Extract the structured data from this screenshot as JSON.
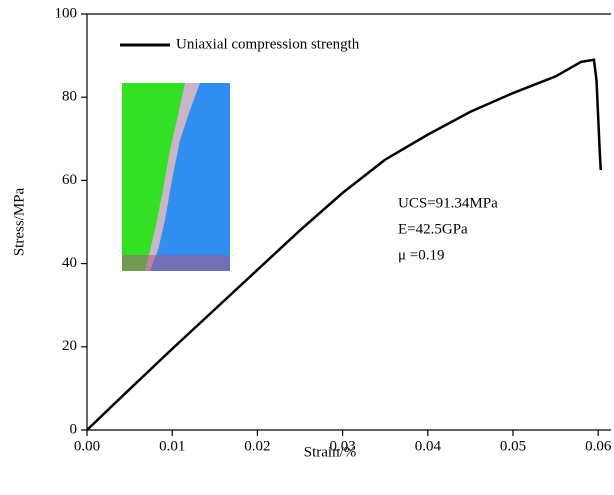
{
  "chart_data": {
    "type": "line",
    "xlabel": "Strain/%",
    "ylabel": "Stress/MPa",
    "x": [
      0,
      0.005,
      0.01,
      0.015,
      0.02,
      0.025,
      0.03,
      0.035,
      0.04,
      0.045,
      0.05,
      0.055,
      0.058,
      0.0595,
      0.0598,
      0.06,
      0.0602,
      0.0603
    ],
    "series": [
      {
        "name": "Uniaxial compression strength",
        "color": "#000000",
        "values": [
          0,
          9.8,
          19.5,
          29,
          38.5,
          48,
          57,
          65,
          71,
          76.5,
          81,
          85,
          88.5,
          89,
          84,
          75,
          66,
          62.5
        ]
      }
    ],
    "xlim": [
      0,
      0.0615
    ],
    "ylim": [
      0,
      100
    ],
    "xticks": [
      {
        "value": 0,
        "label": "0.00"
      },
      0.01,
      0.02,
      0.03,
      0.04,
      0.05,
      0.06
    ],
    "yticks": [
      0,
      20,
      40,
      60,
      80,
      100
    ],
    "annotations": [
      "UCS=91.34MPa",
      "E=42.5GPa",
      "μ =0.19"
    ]
  }
}
